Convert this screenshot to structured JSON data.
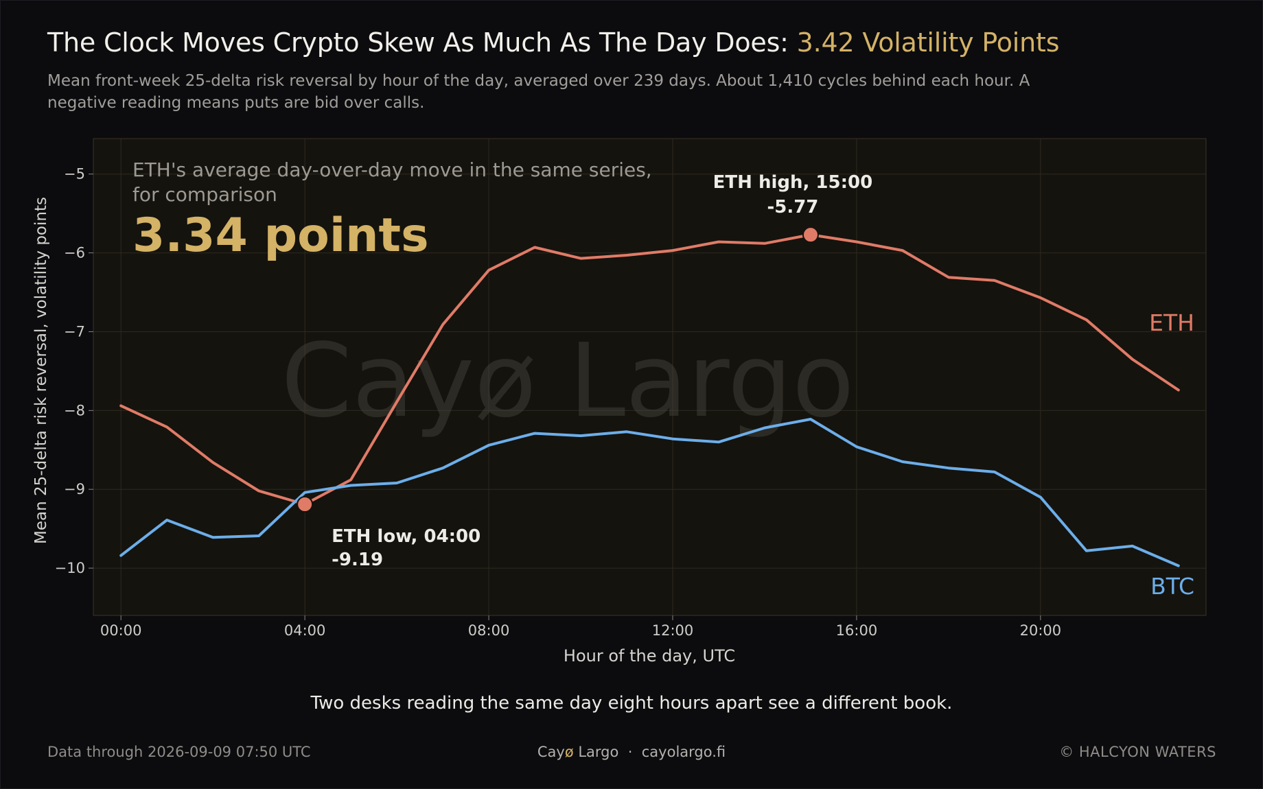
{
  "header": {
    "title_main": "The Clock Moves Crypto Skew As Much As The Day Does:",
    "title_accent": "3.42 Volatility Points",
    "subtitle": "Mean front-week 25-delta risk reversal by hour of the day, averaged over 239 days. About 1,410 cycles behind each hour. A negative reading means puts are bid over calls."
  },
  "chart_data": {
    "type": "line",
    "x": [
      0,
      1,
      2,
      3,
      4,
      5,
      6,
      7,
      8,
      9,
      10,
      11,
      12,
      13,
      14,
      15,
      16,
      17,
      18,
      19,
      20,
      21,
      22,
      23
    ],
    "xticks": [
      0,
      4,
      8,
      12,
      16,
      20
    ],
    "xtick_labels": [
      "00:00",
      "04:00",
      "08:00",
      "12:00",
      "16:00",
      "20:00"
    ],
    "xlim": [
      -0.6,
      23.6
    ],
    "ylim": [
      -10.6,
      -4.55
    ],
    "yticks": [
      -5,
      -6,
      -7,
      -8,
      -9,
      -10
    ],
    "ytick_labels": [
      "−5",
      "−6",
      "−7",
      "−8",
      "−9",
      "−10"
    ],
    "xlabel": "Hour of the day, UTC",
    "ylabel": "Mean 25-delta risk reversal, volatility points",
    "grid": true,
    "watermark": "Cayø Largo",
    "series": [
      {
        "name": "ETH",
        "color": "#e07b67",
        "values": [
          -7.94,
          -8.21,
          -8.66,
          -9.02,
          -9.19,
          -8.88,
          -7.89,
          -6.91,
          -6.22,
          -5.93,
          -6.07,
          -6.03,
          -5.97,
          -5.86,
          -5.88,
          -5.77,
          -5.86,
          -5.97,
          -6.31,
          -6.35,
          -6.57,
          -6.85,
          -7.35,
          -7.74
        ]
      },
      {
        "name": "BTC",
        "color": "#6caeea",
        "values": [
          -9.84,
          -9.39,
          -9.61,
          -9.59,
          -9.04,
          -8.95,
          -8.92,
          -8.73,
          -8.44,
          -8.29,
          -8.32,
          -8.27,
          -8.36,
          -8.4,
          -8.22,
          -8.11,
          -8.46,
          -8.65,
          -8.73,
          -8.78,
          -9.1,
          -9.78,
          -9.72,
          -9.97
        ]
      }
    ],
    "callout": {
      "line1": "ETH's average day-over-day move in the same series,",
      "line2": "for comparison",
      "value": "3.34 points"
    },
    "annotations": [
      {
        "series": "ETH",
        "x": 15,
        "y": -5.77,
        "label": "ETH high, 15:00",
        "value": "-5.77"
      },
      {
        "series": "ETH",
        "x": 4,
        "y": -9.19,
        "label": "ETH low, 04:00",
        "value": "-9.19"
      }
    ]
  },
  "caption": "Two desks reading the same day eight hours apart see a different book.",
  "footer": {
    "left": "Data through 2026-09-09 07:50 UTC",
    "brand_pre": "Cay",
    "brand_o": "ø",
    "brand_post": " Largo",
    "separator": "·",
    "site": "cayolargo.fi",
    "right": "© HALCYON WATERS"
  },
  "colors": {
    "accent": "#d4b266",
    "eth": "#e07b67",
    "btc": "#6caeea",
    "plot_bg": "#15130e",
    "background": "#0c0c0f"
  }
}
